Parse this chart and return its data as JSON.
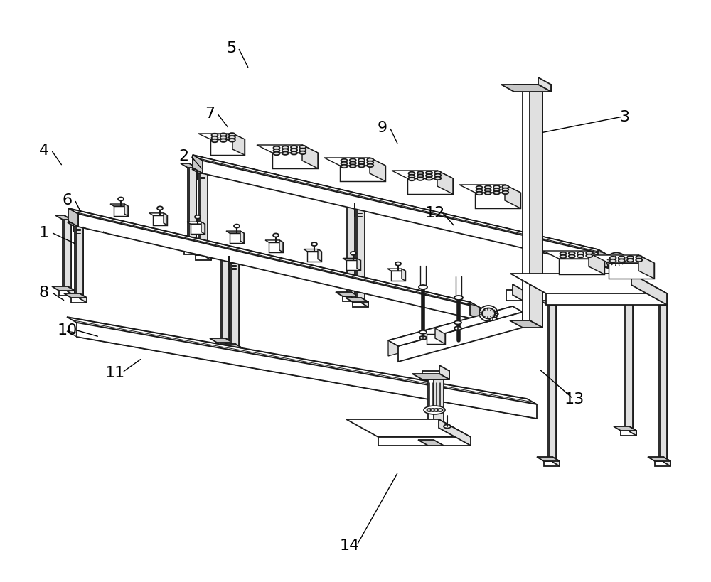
{
  "bg_color": "#ffffff",
  "lc": "#1a1a1a",
  "lw": 1.3,
  "fl": "#e0e0e0",
  "fm": "#c8c8c8",
  "figsize": [
    10,
    8.2
  ],
  "dpi": 100,
  "labels": [
    [
      "1",
      68,
      490
    ],
    [
      "2",
      270,
      598
    ],
    [
      "3",
      878,
      650
    ],
    [
      "4",
      68,
      598
    ],
    [
      "5",
      338,
      748
    ],
    [
      "6",
      100,
      535
    ],
    [
      "7",
      308,
      658
    ],
    [
      "8",
      68,
      408
    ],
    [
      "9",
      545,
      635
    ],
    [
      "10",
      100,
      355
    ],
    [
      "11",
      168,
      295
    ],
    [
      "12",
      618,
      518
    ],
    [
      "13",
      808,
      258
    ],
    [
      "14",
      498,
      52
    ]
  ]
}
